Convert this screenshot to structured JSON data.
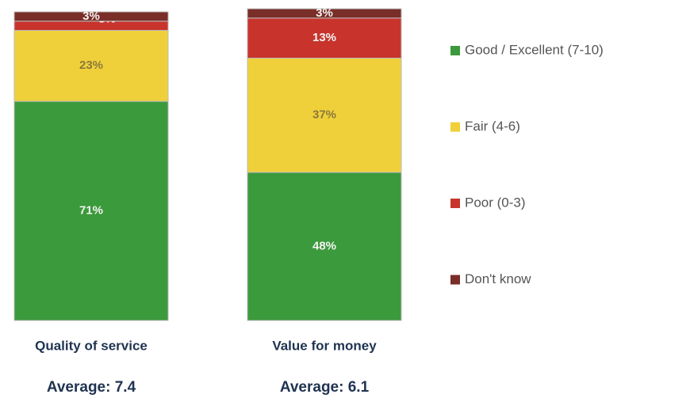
{
  "chart_data": {
    "type": "stacked_bar",
    "categories": [
      "Quality of service",
      "Value for money"
    ],
    "annotations": [
      "Average: 7.4",
      "Average: 6.1"
    ],
    "series": [
      {
        "name": "Good / Excellent (7-10)",
        "color": "#3b9a3c",
        "values": [
          71,
          48
        ],
        "value_labels": [
          "71%",
          "48%"
        ]
      },
      {
        "name": "Fair (4-6)",
        "color": "#f0d03a",
        "values": [
          23,
          37
        ],
        "value_labels": [
          "23%",
          "37%"
        ]
      },
      {
        "name": "Poor (0-3)",
        "color": "#c8342c",
        "values": [
          3,
          13
        ],
        "value_labels": [
          "3%",
          "13%"
        ]
      },
      {
        "name": "Don't know",
        "color": "#7a2e28",
        "values": [
          3,
          3
        ],
        "value_labels": [
          "3%",
          "3%"
        ]
      }
    ],
    "ylim": [
      0,
      100
    ]
  }
}
